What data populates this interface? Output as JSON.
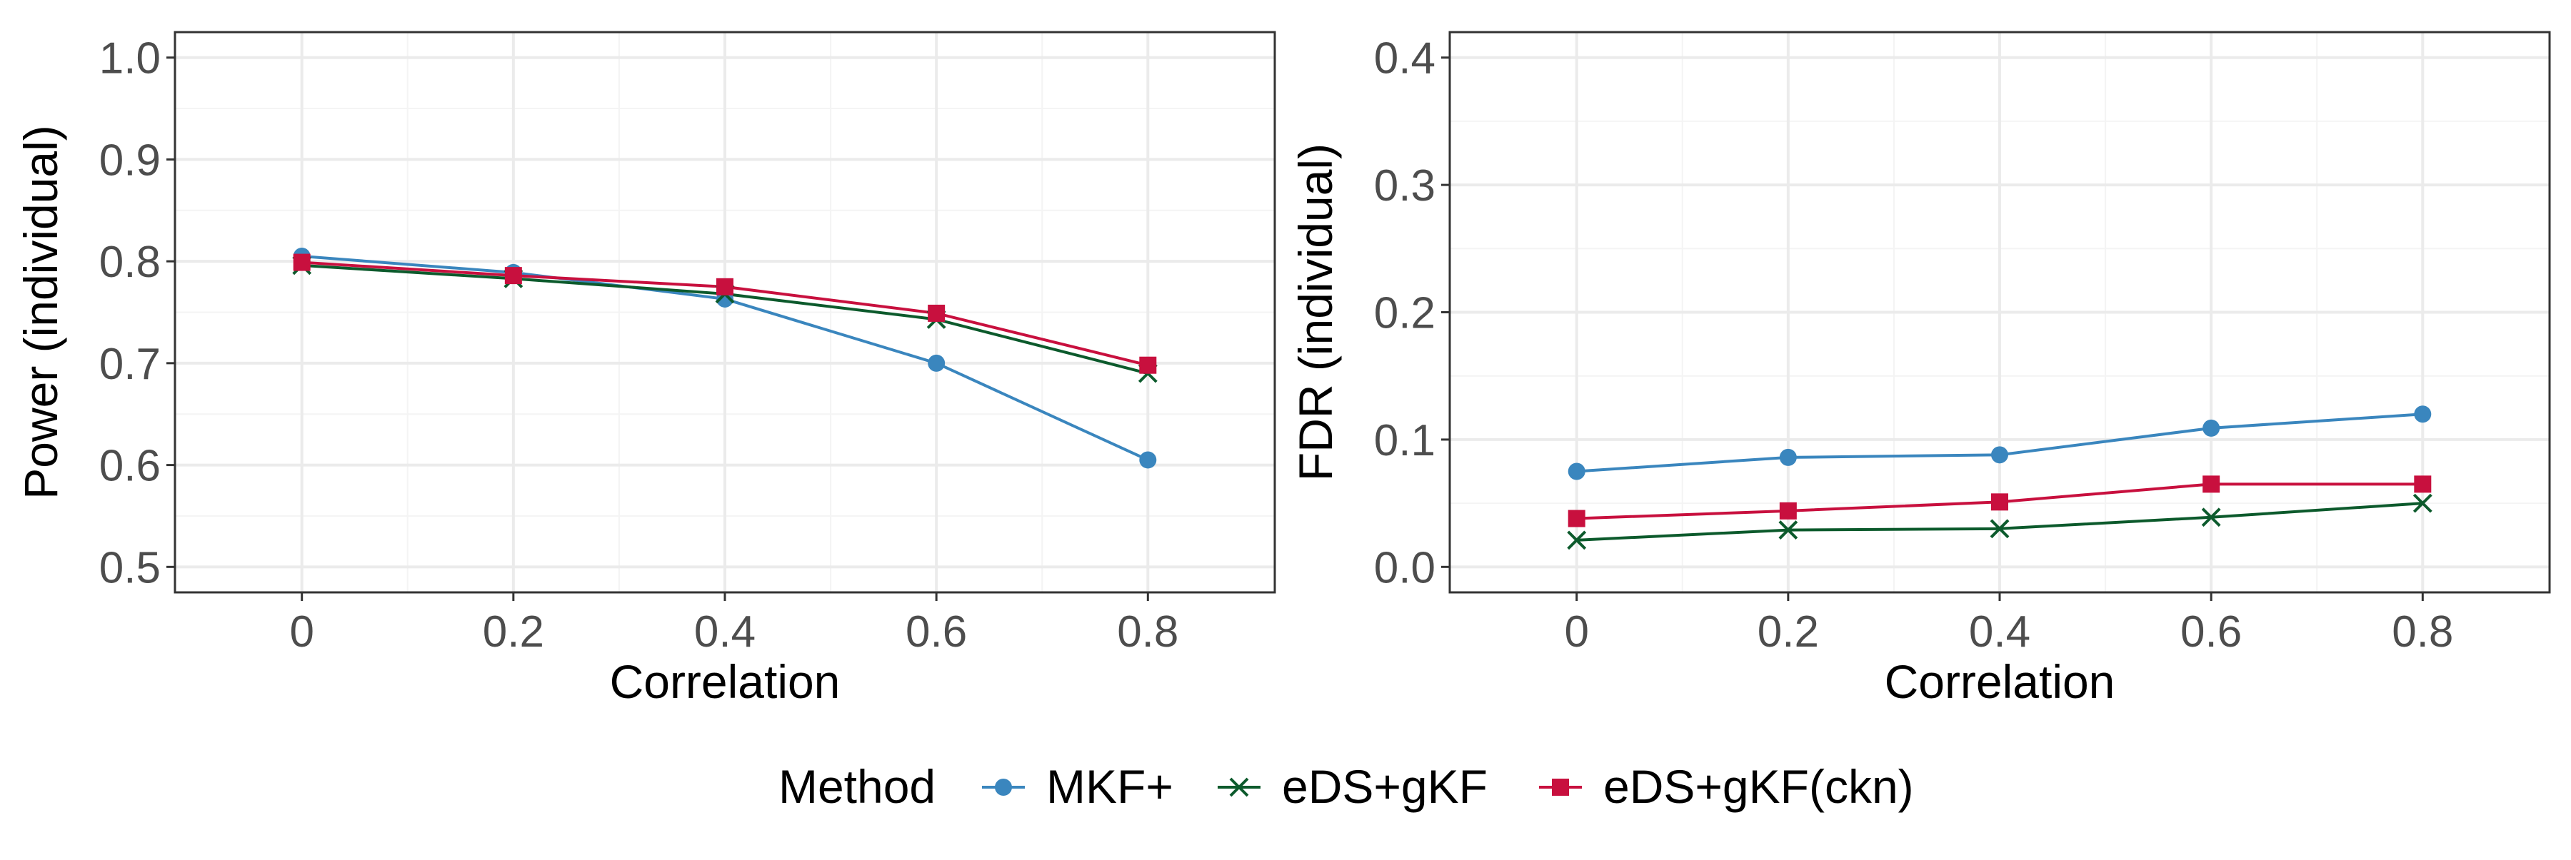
{
  "colors": {
    "mkf": "#3A86BE",
    "eds": "#0C5A2C",
    "ckn": "#C8103E",
    "grid_major": "#EBEBEB",
    "grid_minor": "#F4F4F4",
    "panel_border": "#333333"
  },
  "legend": {
    "title": "Method",
    "items": [
      {
        "label": "MKF+",
        "color_key": "mkf",
        "shape": "circle"
      },
      {
        "label": "eDS+gKF",
        "color_key": "eds",
        "shape": "x"
      },
      {
        "label": "eDS+gKF(ckn)",
        "color_key": "ckn",
        "shape": "square"
      }
    ]
  },
  "chart_data": [
    {
      "type": "line",
      "title": "",
      "xlabel": "Correlation",
      "ylabel": "Power (individual)",
      "x": [
        0,
        0.2,
        0.4,
        0.6,
        0.8
      ],
      "xticks": [
        "0",
        "0.2",
        "0.4",
        "0.6",
        "0.8"
      ],
      "xlim": [
        -0.12,
        0.92
      ],
      "yticks": [
        "0.5",
        "0.6",
        "0.7",
        "0.8",
        "0.9",
        "1.0"
      ],
      "ytick_values": [
        0.5,
        0.6,
        0.7,
        0.8,
        0.9,
        1.0
      ],
      "ylim": [
        0.475,
        1.025
      ],
      "grid": true,
      "series": [
        {
          "name": "MKF+",
          "color_key": "mkf",
          "shape": "circle",
          "values": [
            0.805,
            0.789,
            0.763,
            0.7,
            0.605
          ]
        },
        {
          "name": "eDS+gKF",
          "color_key": "eds",
          "shape": "x",
          "values": [
            0.796,
            0.783,
            0.768,
            0.743,
            0.69
          ]
        },
        {
          "name": "eDS+gKF(ckn)",
          "color_key": "ckn",
          "shape": "square",
          "values": [
            0.799,
            0.786,
            0.775,
            0.749,
            0.698
          ]
        }
      ]
    },
    {
      "type": "line",
      "title": "",
      "xlabel": "Correlation",
      "ylabel": "FDR (individual)",
      "x": [
        0,
        0.2,
        0.4,
        0.6,
        0.8
      ],
      "xticks": [
        "0",
        "0.2",
        "0.4",
        "0.6",
        "0.8"
      ],
      "xlim": [
        -0.12,
        0.92
      ],
      "yticks": [
        "0.0",
        "0.1",
        "0.2",
        "0.3",
        "0.4"
      ],
      "ytick_values": [
        0.0,
        0.1,
        0.2,
        0.3,
        0.4
      ],
      "ylim": [
        -0.02,
        0.42
      ],
      "grid": true,
      "series": [
        {
          "name": "MKF+",
          "color_key": "mkf",
          "shape": "circle",
          "values": [
            0.075,
            0.086,
            0.088,
            0.109,
            0.12
          ]
        },
        {
          "name": "eDS+gKF",
          "color_key": "eds",
          "shape": "x",
          "values": [
            0.021,
            0.029,
            0.03,
            0.039,
            0.05
          ]
        },
        {
          "name": "eDS+gKF(ckn)",
          "color_key": "ckn",
          "shape": "square",
          "values": [
            0.038,
            0.044,
            0.051,
            0.065,
            0.065
          ]
        }
      ]
    }
  ]
}
